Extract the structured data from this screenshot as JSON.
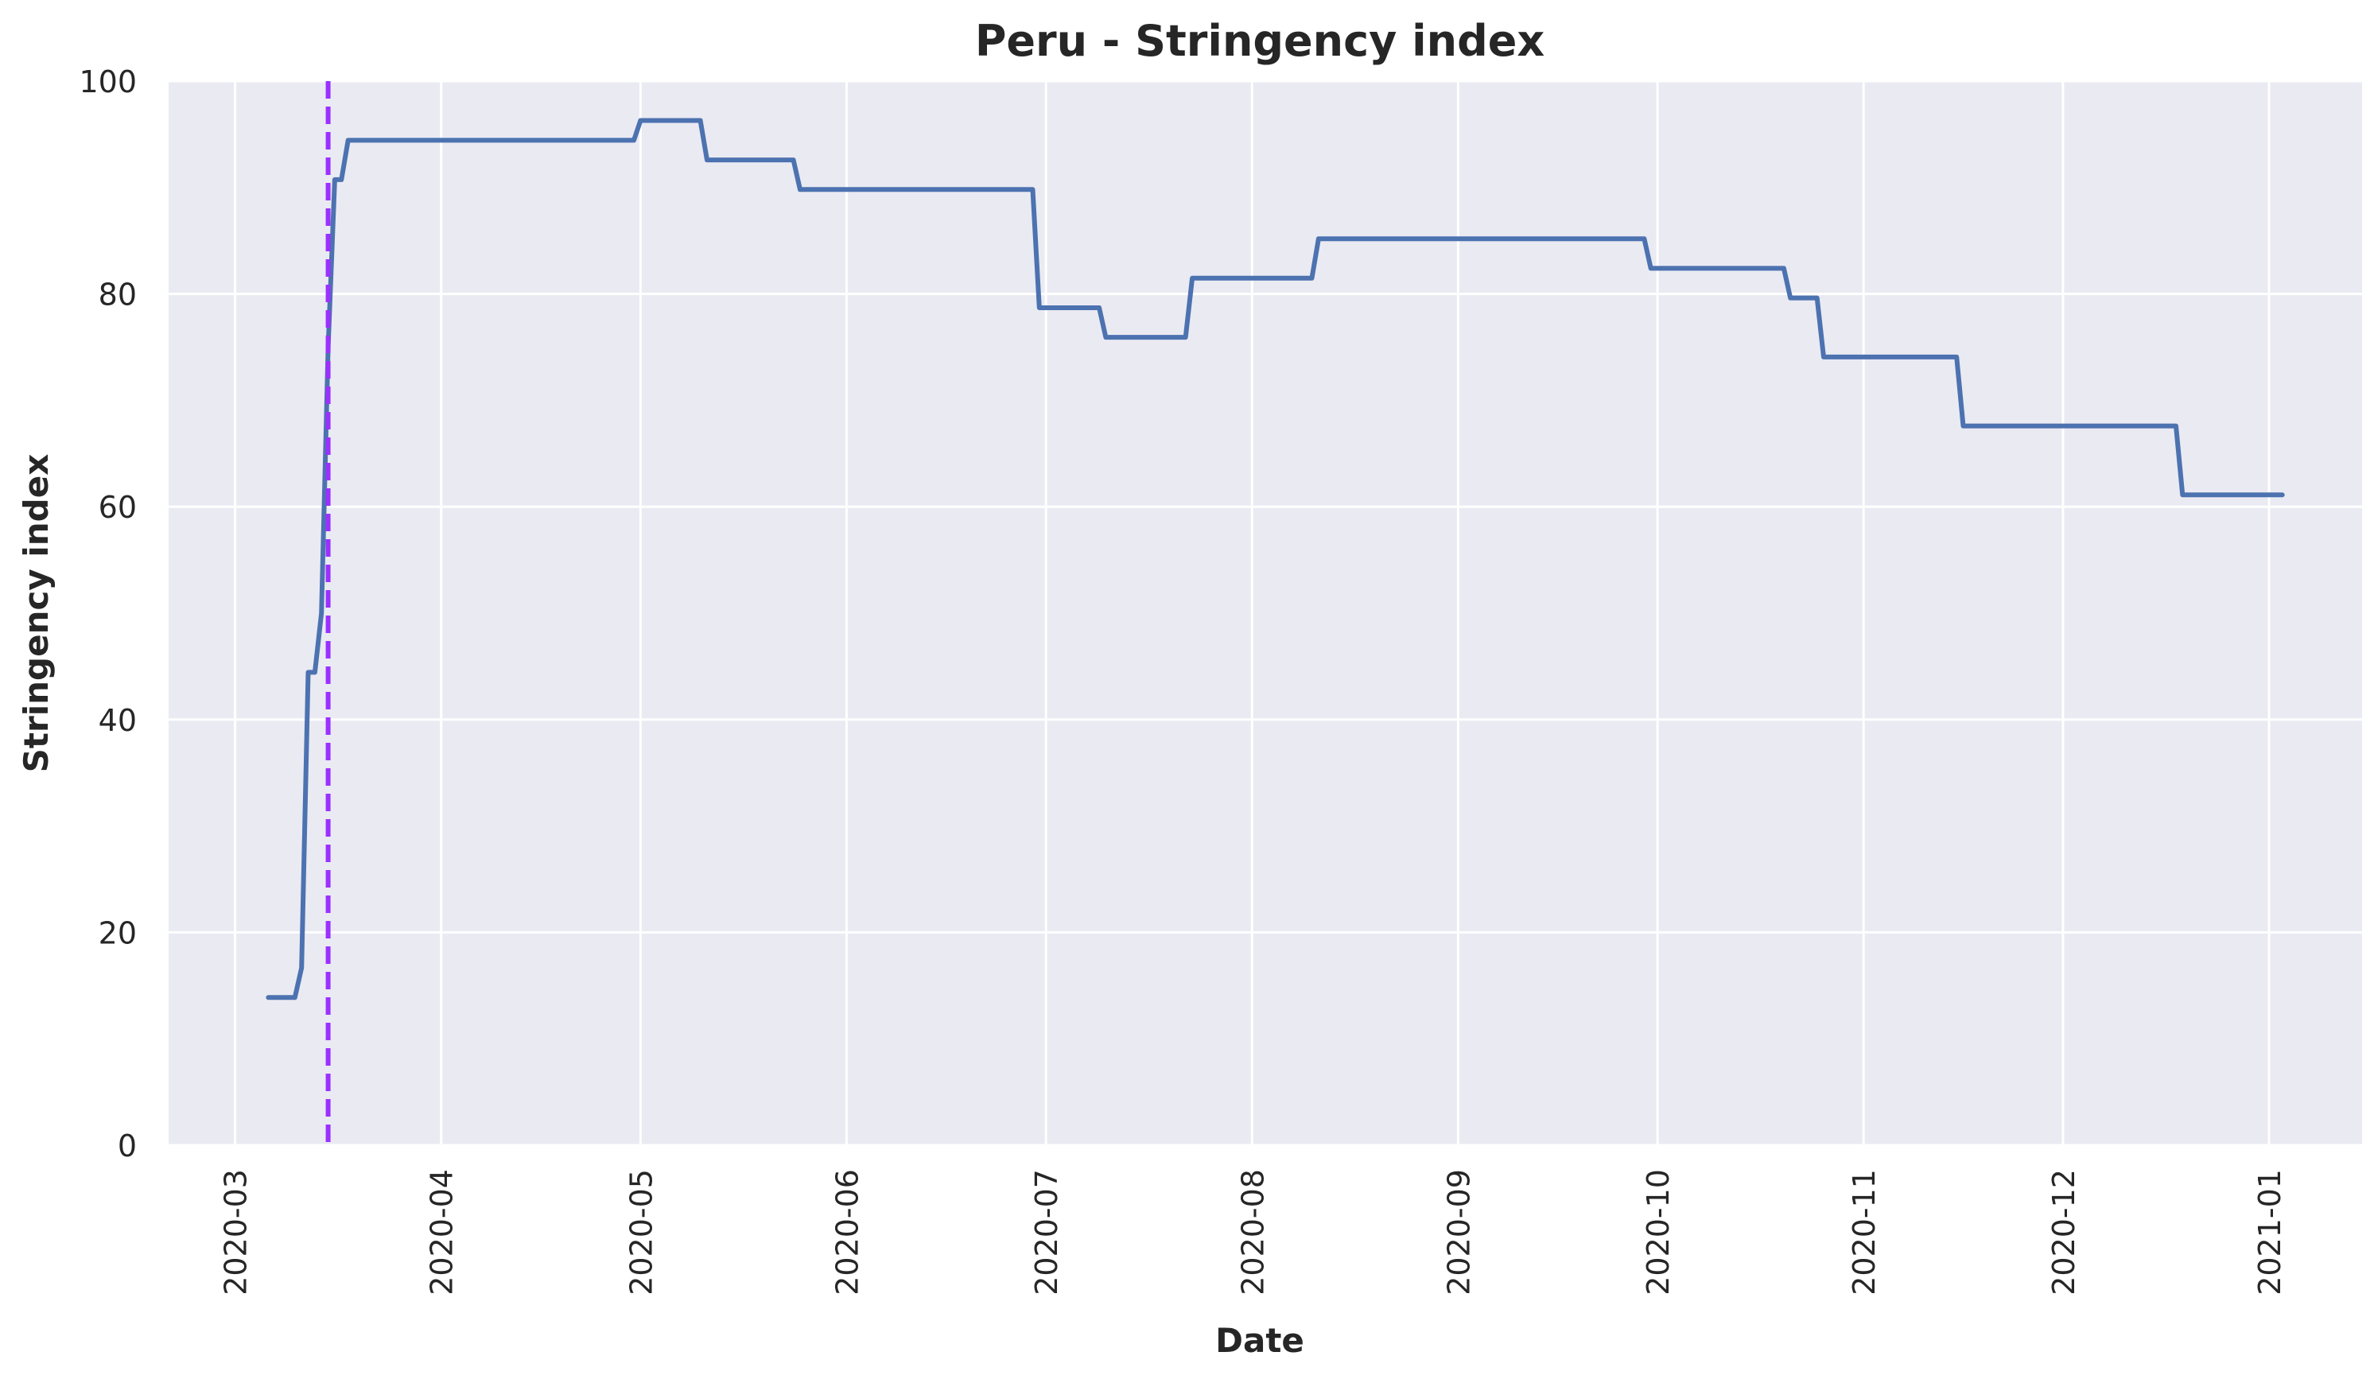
{
  "chart_data": {
    "type": "line",
    "title": "Peru - Stringency index",
    "xlabel": "Date",
    "ylabel": "Stringency index",
    "x_ticks": [
      "2020-03",
      "2020-04",
      "2020-05",
      "2020-06",
      "2020-07",
      "2020-08",
      "2020-09",
      "2020-10",
      "2020-11",
      "2020-12",
      "2021-01"
    ],
    "y_ticks": [
      "0",
      "20",
      "40",
      "60",
      "80",
      "100"
    ],
    "xlim": [
      "2020-02-20",
      "2021-01-15"
    ],
    "ylim": [
      0,
      100
    ],
    "grid": true,
    "series": [
      {
        "color": "#4c72b0",
        "x": [
          "2020-03-06",
          "2020-03-10",
          "2020-03-11",
          "2020-03-12",
          "2020-03-13",
          "2020-03-14",
          "2020-03-15",
          "2020-03-16",
          "2020-03-17",
          "2020-03-18",
          "2020-03-19",
          "2020-04-30",
          "2020-05-01",
          "2020-05-10",
          "2020-05-11",
          "2020-05-24",
          "2020-05-25",
          "2020-06-29",
          "2020-06-30",
          "2020-07-09",
          "2020-07-10",
          "2020-07-22",
          "2020-07-23",
          "2020-08-10",
          "2020-08-11",
          "2020-09-29",
          "2020-09-30",
          "2020-10-20",
          "2020-10-21",
          "2020-10-25",
          "2020-10-26",
          "2020-11-15",
          "2020-11-16",
          "2020-12-18",
          "2020-12-19",
          "2021-01-03"
        ],
        "y": [
          13.89,
          13.89,
          16.67,
          44.44,
          44.44,
          50.0,
          75.0,
          90.74,
          90.74,
          94.44,
          94.44,
          94.44,
          96.3,
          96.3,
          92.59,
          92.59,
          89.81,
          89.81,
          78.7,
          78.7,
          75.93,
          75.93,
          81.48,
          81.48,
          85.19,
          85.19,
          82.41,
          82.41,
          79.63,
          79.63,
          74.07,
          74.07,
          67.59,
          67.59,
          61.11,
          61.11
        ]
      }
    ],
    "vline": {
      "x": "2020-03-15",
      "color": "#9b30ff",
      "style": "dashed"
    },
    "colors": {
      "background": "#eaeaf2",
      "grid": "#ffffff",
      "line": "#4c72b0",
      "vline": "#9b30ff",
      "text": "#262626"
    }
  }
}
